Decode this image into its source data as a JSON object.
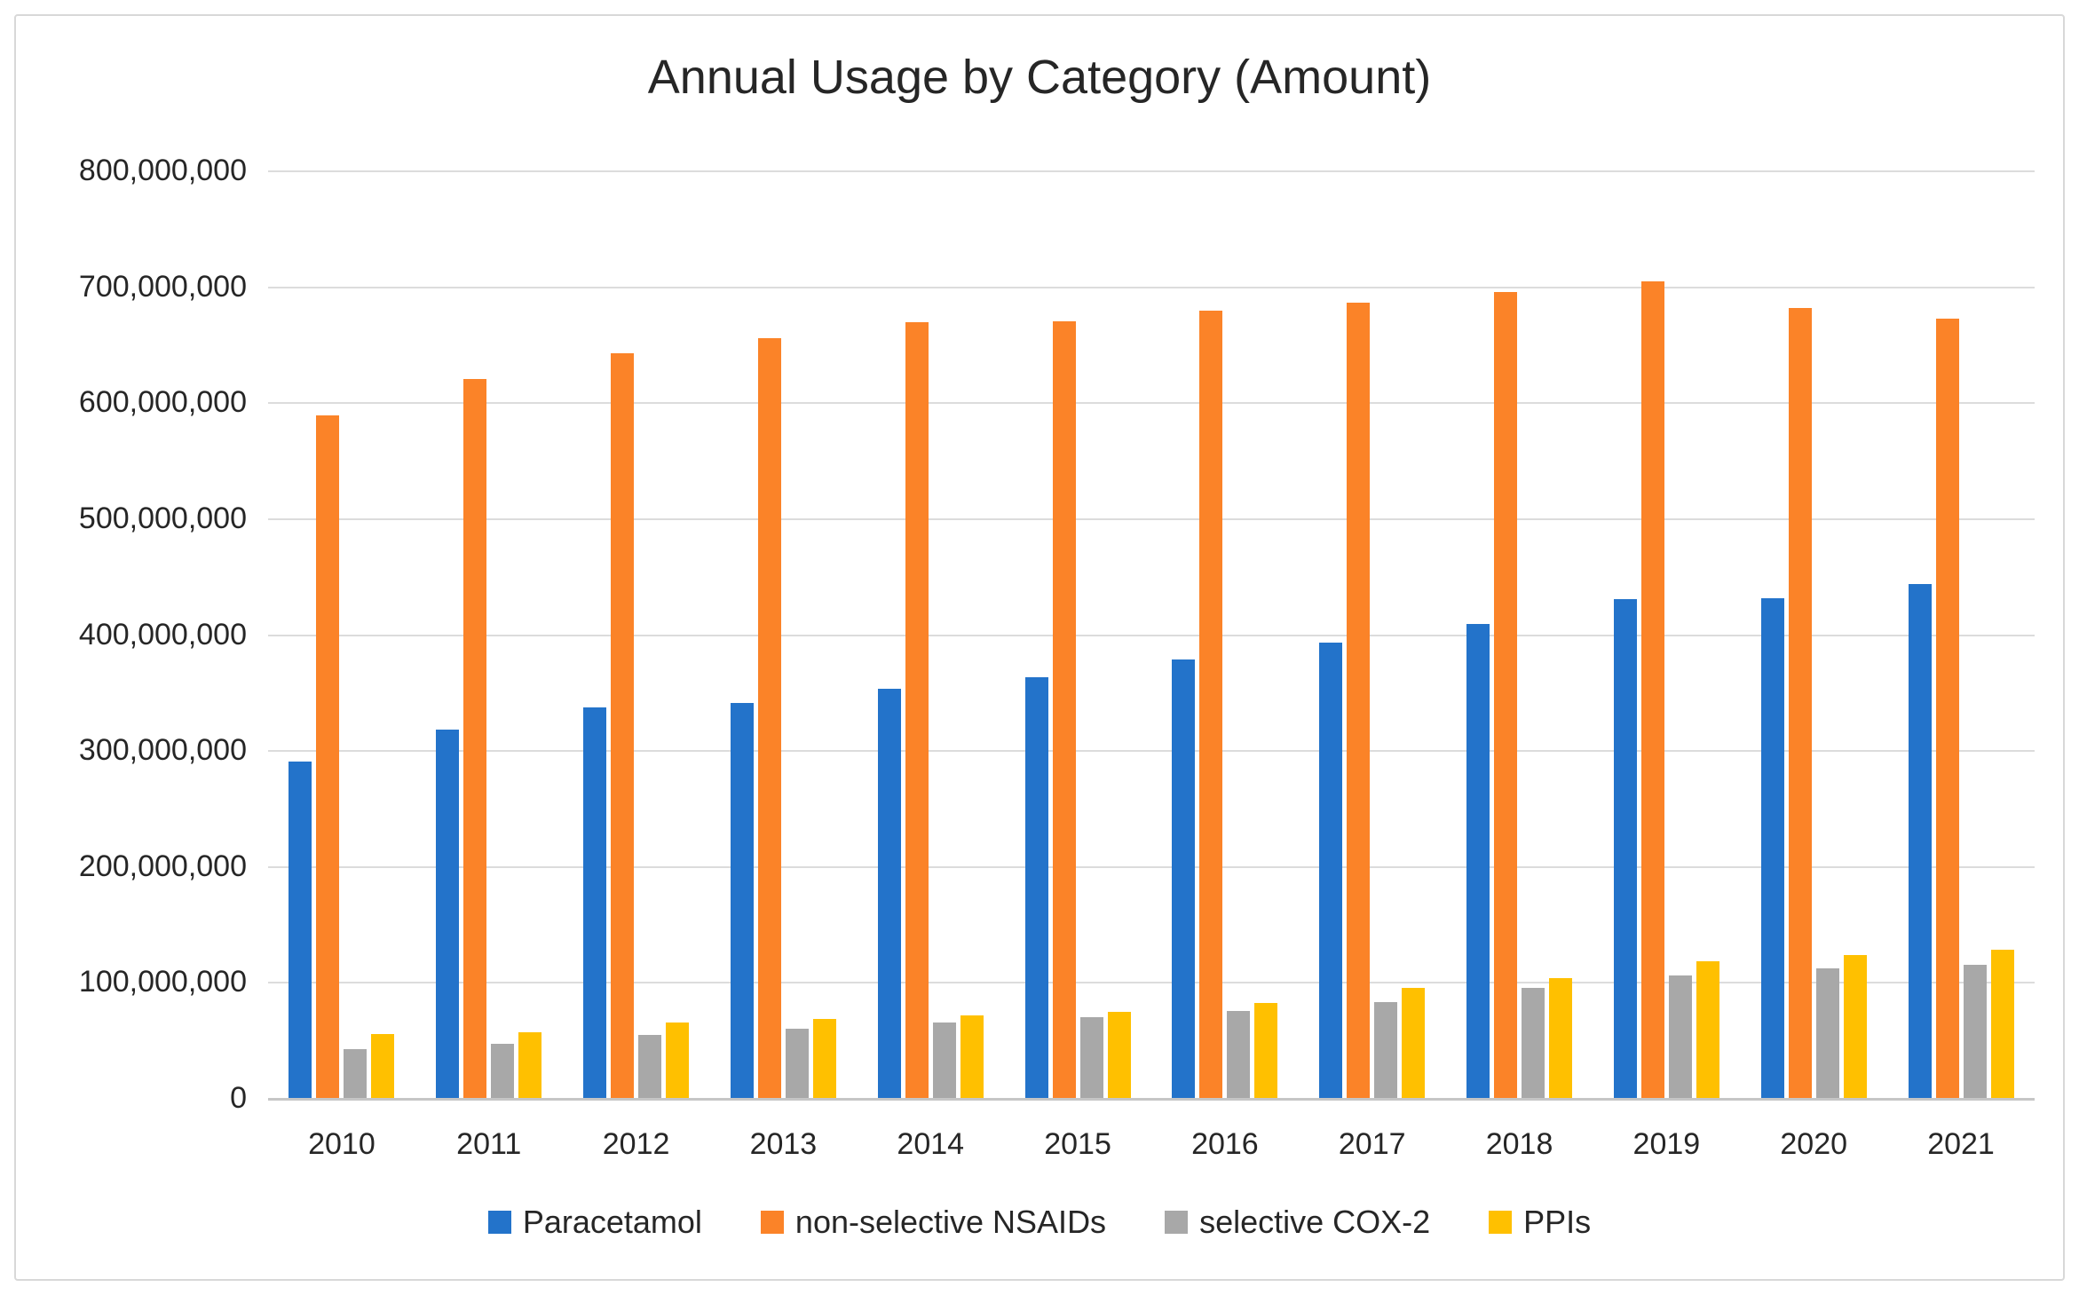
{
  "chart_data": {
    "type": "bar",
    "title": "Annual Usage by Category (Amount)",
    "categories": [
      "2010",
      "2011",
      "2012",
      "2013",
      "2014",
      "2015",
      "2016",
      "2017",
      "2018",
      "2019",
      "2020",
      "2021"
    ],
    "series": [
      {
        "name": "Paracetamol",
        "color": "#2373CA",
        "values": [
          290000000,
          318000000,
          337000000,
          341000000,
          353000000,
          363000000,
          378000000,
          393000000,
          409000000,
          430000000,
          431000000,
          443000000
        ]
      },
      {
        "name": "non-selective NSAIDs",
        "color": "#FB8328",
        "values": [
          589000000,
          620000000,
          642000000,
          655000000,
          669000000,
          670000000,
          679000000,
          686000000,
          695000000,
          704000000,
          681000000,
          672000000
        ]
      },
      {
        "name": "selective COX-2",
        "color": "#A8A8A8",
        "values": [
          42000000,
          47000000,
          54000000,
          60000000,
          65000000,
          70000000,
          75000000,
          83000000,
          95000000,
          106000000,
          112000000,
          115000000
        ]
      },
      {
        "name": "PPIs",
        "color": "#FFC000",
        "values": [
          55000000,
          57000000,
          65000000,
          68000000,
          71000000,
          74000000,
          82000000,
          95000000,
          103000000,
          118000000,
          123000000,
          128000000
        ]
      }
    ],
    "xlabel": "",
    "ylabel": "",
    "ylim": [
      0,
      800000000
    ],
    "ytick_step": 100000000,
    "ytick_labels": [
      "0",
      "100,000,000",
      "200,000,000",
      "300,000,000",
      "400,000,000",
      "500,000,000",
      "600,000,000",
      "700,000,000",
      "800,000,000"
    ],
    "grid": true,
    "legend_position": "bottom"
  },
  "style": {
    "gridline_color": "#dcdcdc",
    "baseline_color": "#c6c6c6",
    "text_color": "#262626",
    "frame_border_color": "#d8d8d8",
    "background_color": "#ffffff"
  }
}
